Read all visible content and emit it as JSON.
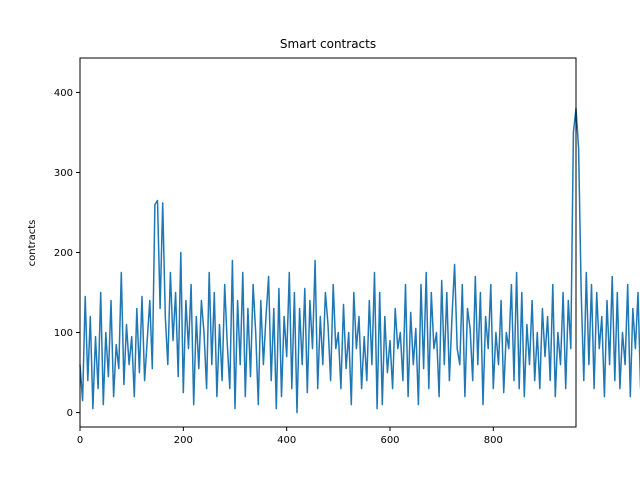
{
  "chart_data": {
    "type": "line",
    "title": "Smart contracts",
    "xlabel": "",
    "ylabel": "contracts",
    "xlim": [
      0,
      960
    ],
    "ylim": [
      -18,
      443
    ],
    "x_ticks": [
      0,
      200,
      400,
      600,
      800
    ],
    "y_ticks": [
      0,
      100,
      200,
      300,
      400
    ],
    "grid": false,
    "legend": "none",
    "color": "#1f77b4",
    "series": [
      {
        "x_start": 0,
        "x_step": 5,
        "values": [
          60,
          15,
          145,
          40,
          120,
          5,
          95,
          30,
          150,
          10,
          100,
          45,
          140,
          20,
          85,
          55,
          175,
          35,
          110,
          60,
          95,
          20,
          130,
          50,
          145,
          40,
          90,
          140,
          55,
          260,
          265,
          130,
          262,
          120,
          60,
          175,
          90,
          150,
          45,
          200,
          25,
          140,
          80,
          160,
          10,
          120,
          55,
          140,
          100,
          30,
          175,
          60,
          150,
          20,
          110,
          40,
          160,
          85,
          30,
          190,
          5,
          140,
          60,
          175,
          20,
          130,
          45,
          160,
          100,
          10,
          140,
          60,
          120,
          170,
          40,
          130,
          5,
          155,
          20,
          120,
          70,
          175,
          30,
          150,
          0,
          130,
          60,
          155,
          25,
          140,
          80,
          190,
          30,
          120,
          60,
          150,
          110,
          40,
          160,
          80,
          100,
          30,
          135,
          55,
          100,
          10,
          150,
          80,
          120,
          30,
          95,
          40,
          140,
          60,
          175,
          5,
          150,
          10,
          120,
          50,
          90,
          30,
          130,
          80,
          100,
          40,
          160,
          20,
          125,
          60,
          105,
          10,
          160,
          55,
          175,
          30,
          150,
          80,
          100,
          20,
          165,
          60,
          150,
          40,
          120,
          185,
          80,
          60,
          160,
          20,
          130,
          105,
          40,
          170,
          60,
          150,
          10,
          120,
          80,
          160,
          30,
          100,
          60,
          140,
          25,
          100,
          80,
          160,
          40,
          175,
          30,
          150,
          20,
          110,
          60,
          140,
          40,
          100,
          30,
          130,
          70,
          120,
          40,
          160,
          20,
          100,
          60,
          150,
          30,
          140,
          80,
          350,
          380,
          330,
          150,
          40,
          175,
          60,
          160,
          30,
          150,
          80,
          120,
          20,
          140,
          60,
          170,
          40,
          150,
          30,
          100,
          60,
          160,
          20,
          130,
          80,
          150,
          30,
          120,
          60,
          160,
          40,
          140,
          20,
          100,
          80,
          170,
          50,
          130,
          30,
          160,
          60,
          210,
          80,
          130
        ]
      }
    ]
  }
}
